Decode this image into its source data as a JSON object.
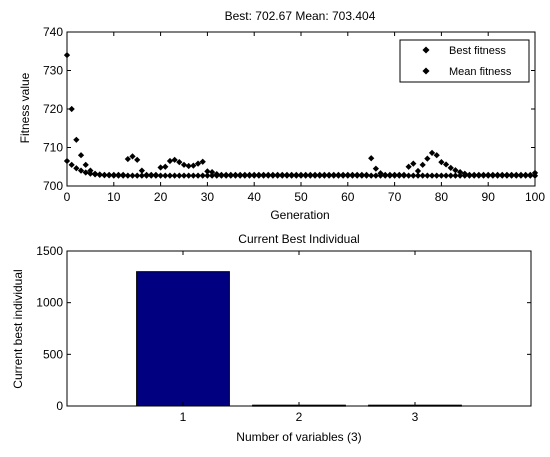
{
  "chart_data": [
    {
      "type": "scatter",
      "title": "Best: 702.67 Mean: 703.404",
      "xlabel": "Generation",
      "ylabel": "Fitness value",
      "xlim": [
        0,
        100
      ],
      "ylim": [
        700,
        740
      ],
      "xticks": [
        0,
        10,
        20,
        30,
        40,
        50,
        60,
        70,
        80,
        90,
        100
      ],
      "yticks": [
        700,
        710,
        720,
        730,
        740
      ],
      "grid": false,
      "legend_position": "top-right",
      "marker_color": "#000000",
      "series": [
        {
          "name": "Best fitness",
          "x": [
            0,
            1,
            2,
            3,
            4,
            5,
            6,
            7,
            8,
            9,
            10,
            11,
            12,
            13,
            14,
            15,
            16,
            17,
            18,
            19,
            20,
            21,
            22,
            23,
            24,
            25,
            26,
            27,
            28,
            29,
            30,
            31,
            32,
            33,
            34,
            35,
            36,
            37,
            38,
            39,
            40,
            41,
            42,
            43,
            44,
            45,
            46,
            47,
            48,
            49,
            50,
            51,
            52,
            53,
            54,
            55,
            56,
            57,
            58,
            59,
            60,
            61,
            62,
            63,
            64,
            65,
            66,
            67,
            68,
            69,
            70,
            71,
            72,
            73,
            74,
            75,
            76,
            77,
            78,
            79,
            80,
            81,
            82,
            83,
            84,
            85,
            86,
            87,
            88,
            89,
            90,
            91,
            92,
            93,
            94,
            95,
            96,
            97,
            98,
            99,
            100
          ],
          "y": [
            706.5,
            705.5,
            704.6,
            704,
            703.5,
            703.2,
            703,
            702.9,
            702.8,
            702.75,
            702.7,
            702.7,
            702.7,
            702.7,
            702.7,
            702.7,
            702.7,
            702.7,
            702.7,
            702.7,
            702.7,
            702.7,
            702.7,
            702.7,
            702.7,
            702.7,
            702.7,
            702.7,
            702.7,
            702.7,
            702.7,
            702.7,
            702.7,
            702.7,
            702.7,
            702.7,
            702.7,
            702.7,
            702.7,
            702.7,
            702.7,
            702.7,
            702.7,
            702.7,
            702.7,
            702.7,
            702.7,
            702.7,
            702.7,
            702.7,
            702.7,
            702.7,
            702.7,
            702.7,
            702.7,
            702.7,
            702.7,
            702.7,
            702.7,
            702.7,
            702.7,
            702.7,
            702.7,
            702.7,
            702.7,
            702.7,
            702.7,
            702.7,
            702.7,
            702.7,
            702.7,
            702.7,
            702.7,
            702.7,
            702.7,
            702.7,
            702.7,
            702.7,
            702.7,
            702.7,
            702.7,
            702.7,
            702.7,
            702.7,
            702.7,
            702.7,
            702.7,
            702.7,
            702.7,
            702.7,
            702.7,
            702.7,
            702.7,
            702.7,
            702.7,
            702.7,
            702.7,
            702.7,
            702.7,
            702.7,
            702.67
          ]
        },
        {
          "name": "Mean fitness",
          "x": [
            0,
            1,
            2,
            3,
            4,
            5,
            6,
            7,
            8,
            9,
            10,
            11,
            12,
            13,
            14,
            15,
            16,
            17,
            18,
            19,
            20,
            21,
            22,
            23,
            24,
            25,
            26,
            27,
            28,
            29,
            30,
            31,
            32,
            33,
            34,
            35,
            36,
            37,
            38,
            39,
            40,
            41,
            42,
            43,
            44,
            45,
            46,
            47,
            48,
            49,
            50,
            51,
            52,
            53,
            54,
            55,
            56,
            57,
            58,
            59,
            60,
            61,
            62,
            63,
            64,
            65,
            66,
            67,
            68,
            69,
            70,
            71,
            72,
            73,
            74,
            75,
            76,
            77,
            78,
            79,
            80,
            81,
            82,
            83,
            84,
            85,
            86,
            87,
            88,
            89,
            90,
            91,
            92,
            93,
            94,
            95,
            96,
            97,
            98,
            99,
            100
          ],
          "y": [
            734,
            720,
            712,
            708,
            705.5,
            704,
            703.2,
            703,
            702.9,
            702.9,
            702.9,
            702.9,
            702.9,
            707,
            707.7,
            706.8,
            704,
            702.9,
            702.9,
            702.9,
            704.8,
            705,
            706.5,
            706.8,
            706.2,
            705.5,
            705.2,
            705.3,
            705.8,
            706.3,
            703.8,
            703.6,
            703.1,
            702.9,
            702.9,
            702.9,
            702.9,
            702.9,
            702.9,
            702.9,
            702.9,
            702.9,
            702.9,
            702.9,
            702.9,
            702.9,
            702.9,
            702.9,
            702.9,
            702.9,
            702.9,
            702.9,
            702.9,
            702.9,
            702.9,
            702.9,
            702.9,
            702.9,
            702.9,
            702.9,
            702.9,
            702.9,
            702.9,
            702.9,
            702.9,
            707.2,
            704.5,
            703.3,
            702.9,
            702.9,
            702.9,
            702.9,
            702.9,
            705,
            705.8,
            703.9,
            705.5,
            707.1,
            708.6,
            708,
            706.2,
            705.6,
            704.7,
            704.1,
            703.6,
            703.2,
            702.9,
            702.9,
            702.9,
            702.9,
            702.9,
            702.9,
            702.9,
            702.9,
            702.9,
            702.9,
            702.9,
            702.9,
            702.9,
            702.9,
            703.404
          ]
        }
      ]
    },
    {
      "type": "bar",
      "title": "Current Best Individual",
      "xlabel": "Number of variables (3)",
      "ylabel": "Current best individual",
      "categories": [
        "1",
        "2",
        "3"
      ],
      "values": [
        1300,
        8,
        8
      ],
      "xlim": [
        0,
        4
      ],
      "ylim": [
        0,
        1500
      ],
      "yticks": [
        0,
        500,
        1000,
        1500
      ],
      "grid": false,
      "bar_color": "#000080"
    }
  ]
}
